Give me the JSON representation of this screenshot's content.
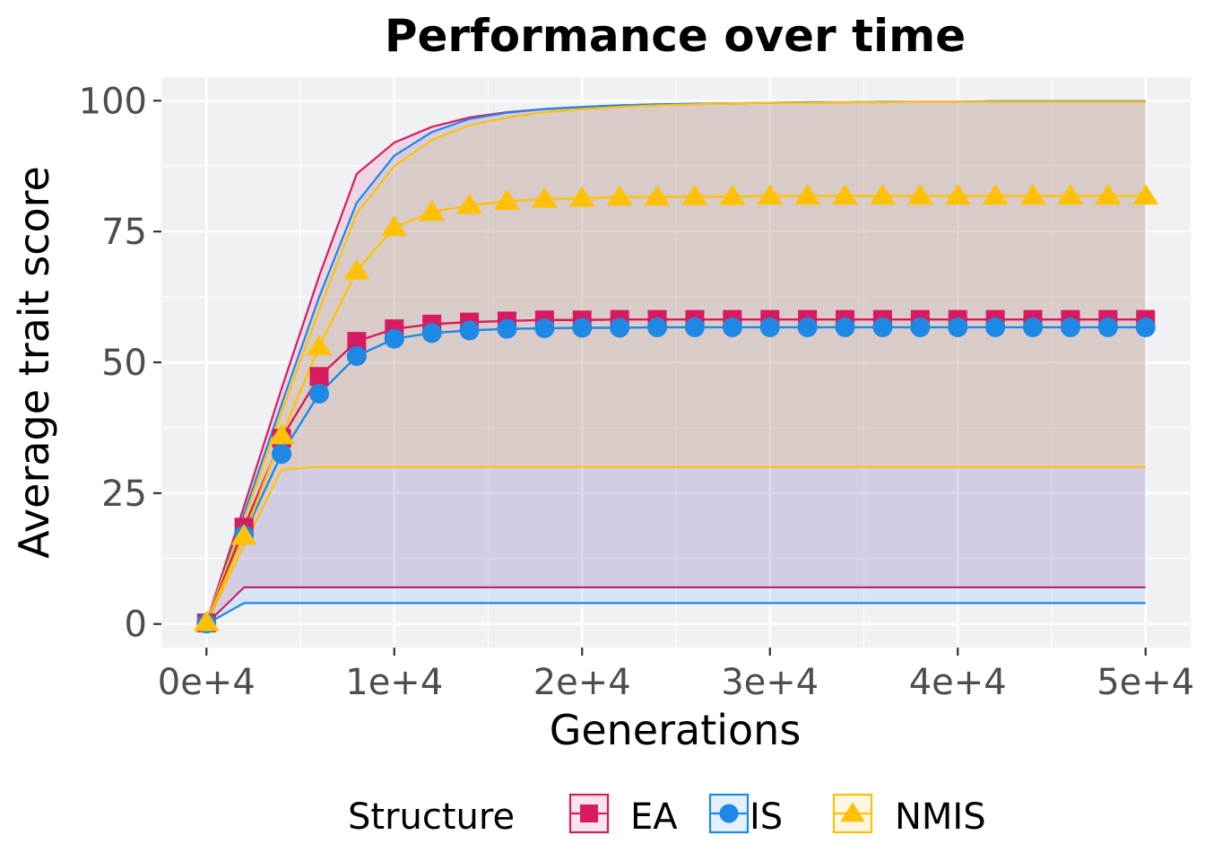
{
  "chart_data": {
    "type": "line",
    "title": "Performance over time",
    "xlabel": "Generations",
    "ylabel": "Average trait score",
    "xlim": [
      -2400,
      52400
    ],
    "ylim": [
      -4.5,
      104.5
    ],
    "x_ticks": [
      0,
      10000,
      20000,
      30000,
      40000,
      50000
    ],
    "x_tick_labels": [
      "0e+4",
      "1e+4",
      "2e+4",
      "3e+4",
      "4e+4",
      "5e+4"
    ],
    "y_ticks": [
      0,
      25,
      50,
      75,
      100
    ],
    "y_tick_labels": [
      "0",
      "25",
      "50",
      "75",
      "100"
    ],
    "grid": true,
    "legend": {
      "title": "Structure",
      "position": "bottom"
    },
    "x": [
      0,
      2000,
      4000,
      6000,
      8000,
      10000,
      12000,
      14000,
      16000,
      18000,
      20000,
      22000,
      24000,
      26000,
      28000,
      30000,
      32000,
      34000,
      36000,
      38000,
      40000,
      42000,
      44000,
      46000,
      48000,
      50000
    ],
    "series": [
      {
        "name": "EA",
        "color": "#d81b60",
        "marker": "square",
        "values": [
          0.2,
          18.5,
          35.5,
          47.3,
          54.0,
          56.4,
          57.3,
          57.7,
          57.9,
          58.1,
          58.1,
          58.2,
          58.2,
          58.2,
          58.2,
          58.2,
          58.2,
          58.2,
          58.2,
          58.2,
          58.2,
          58.2,
          58.2,
          58.2,
          58.2,
          58.2
        ],
        "band_upper": [
          0.3,
          22.5,
          45.0,
          66.5,
          86.0,
          92.0,
          95.0,
          96.8,
          97.8,
          98.4,
          98.8,
          99.1,
          99.3,
          99.4,
          99.5,
          99.6,
          99.7,
          99.7,
          99.8,
          99.8,
          99.8,
          99.9,
          99.9,
          99.9,
          99.9,
          99.9
        ],
        "band_lower": [
          0.0,
          7.0,
          7.0,
          7.0,
          7.0,
          7.0,
          7.0,
          7.0,
          7.0,
          7.0,
          7.0,
          7.0,
          7.0,
          7.0,
          7.0,
          7.0,
          7.0,
          7.0,
          7.0,
          7.0,
          7.0,
          7.0,
          7.0,
          7.0,
          7.0,
          7.0
        ]
      },
      {
        "name": "IS",
        "color": "#1e88e5",
        "marker": "circle",
        "values": [
          0.1,
          17.0,
          32.5,
          44.0,
          51.2,
          54.5,
          55.6,
          56.1,
          56.4,
          56.5,
          56.6,
          56.6,
          56.7,
          56.7,
          56.7,
          56.7,
          56.7,
          56.7,
          56.7,
          56.7,
          56.7,
          56.7,
          56.7,
          56.7,
          56.7,
          56.7
        ],
        "band_upper": [
          0.2,
          21.0,
          42.0,
          62.5,
          80.5,
          89.5,
          94.0,
          96.5,
          97.7,
          98.4,
          98.8,
          99.1,
          99.3,
          99.4,
          99.5,
          99.6,
          99.7,
          99.7,
          99.8,
          99.8,
          99.8,
          99.9,
          99.9,
          99.9,
          99.9,
          99.9
        ],
        "band_lower": [
          0.0,
          4.0,
          4.0,
          4.0,
          4.0,
          4.0,
          4.0,
          4.0,
          4.0,
          4.0,
          4.0,
          4.0,
          4.0,
          4.0,
          4.0,
          4.0,
          4.0,
          4.0,
          4.0,
          4.0,
          4.0,
          4.0,
          4.0,
          4.0,
          4.0,
          4.0
        ]
      },
      {
        "name": "NMIS",
        "color": "#ffc107",
        "marker": "triangle",
        "values": [
          0.3,
          16.8,
          36.0,
          53.0,
          67.5,
          75.8,
          78.7,
          80.0,
          80.8,
          81.2,
          81.4,
          81.6,
          81.6,
          81.7,
          81.7,
          81.8,
          81.8,
          81.8,
          81.8,
          81.8,
          81.8,
          81.8,
          81.8,
          81.8,
          81.8,
          81.8
        ],
        "band_upper": [
          0.4,
          20.0,
          40.5,
          60.0,
          78.5,
          87.5,
          92.5,
          95.3,
          96.8,
          97.8,
          98.4,
          98.8,
          99.1,
          99.3,
          99.5,
          99.6,
          99.6,
          99.7,
          99.7,
          99.8,
          99.8,
          99.8,
          99.8,
          99.8,
          99.8,
          99.8
        ],
        "band_lower": [
          0.0,
          15.0,
          29.5,
          30.0,
          30.0,
          30.0,
          30.0,
          30.0,
          30.0,
          30.0,
          30.0,
          30.0,
          30.0,
          30.0,
          30.0,
          30.0,
          30.0,
          30.0,
          30.0,
          30.0,
          30.0,
          30.0,
          30.0,
          30.0,
          30.0,
          30.0
        ]
      }
    ],
    "colors": {
      "panel_background": "#f0f1f5",
      "grid": "#ffffff",
      "tick_text": "#4d4d4d"
    }
  }
}
